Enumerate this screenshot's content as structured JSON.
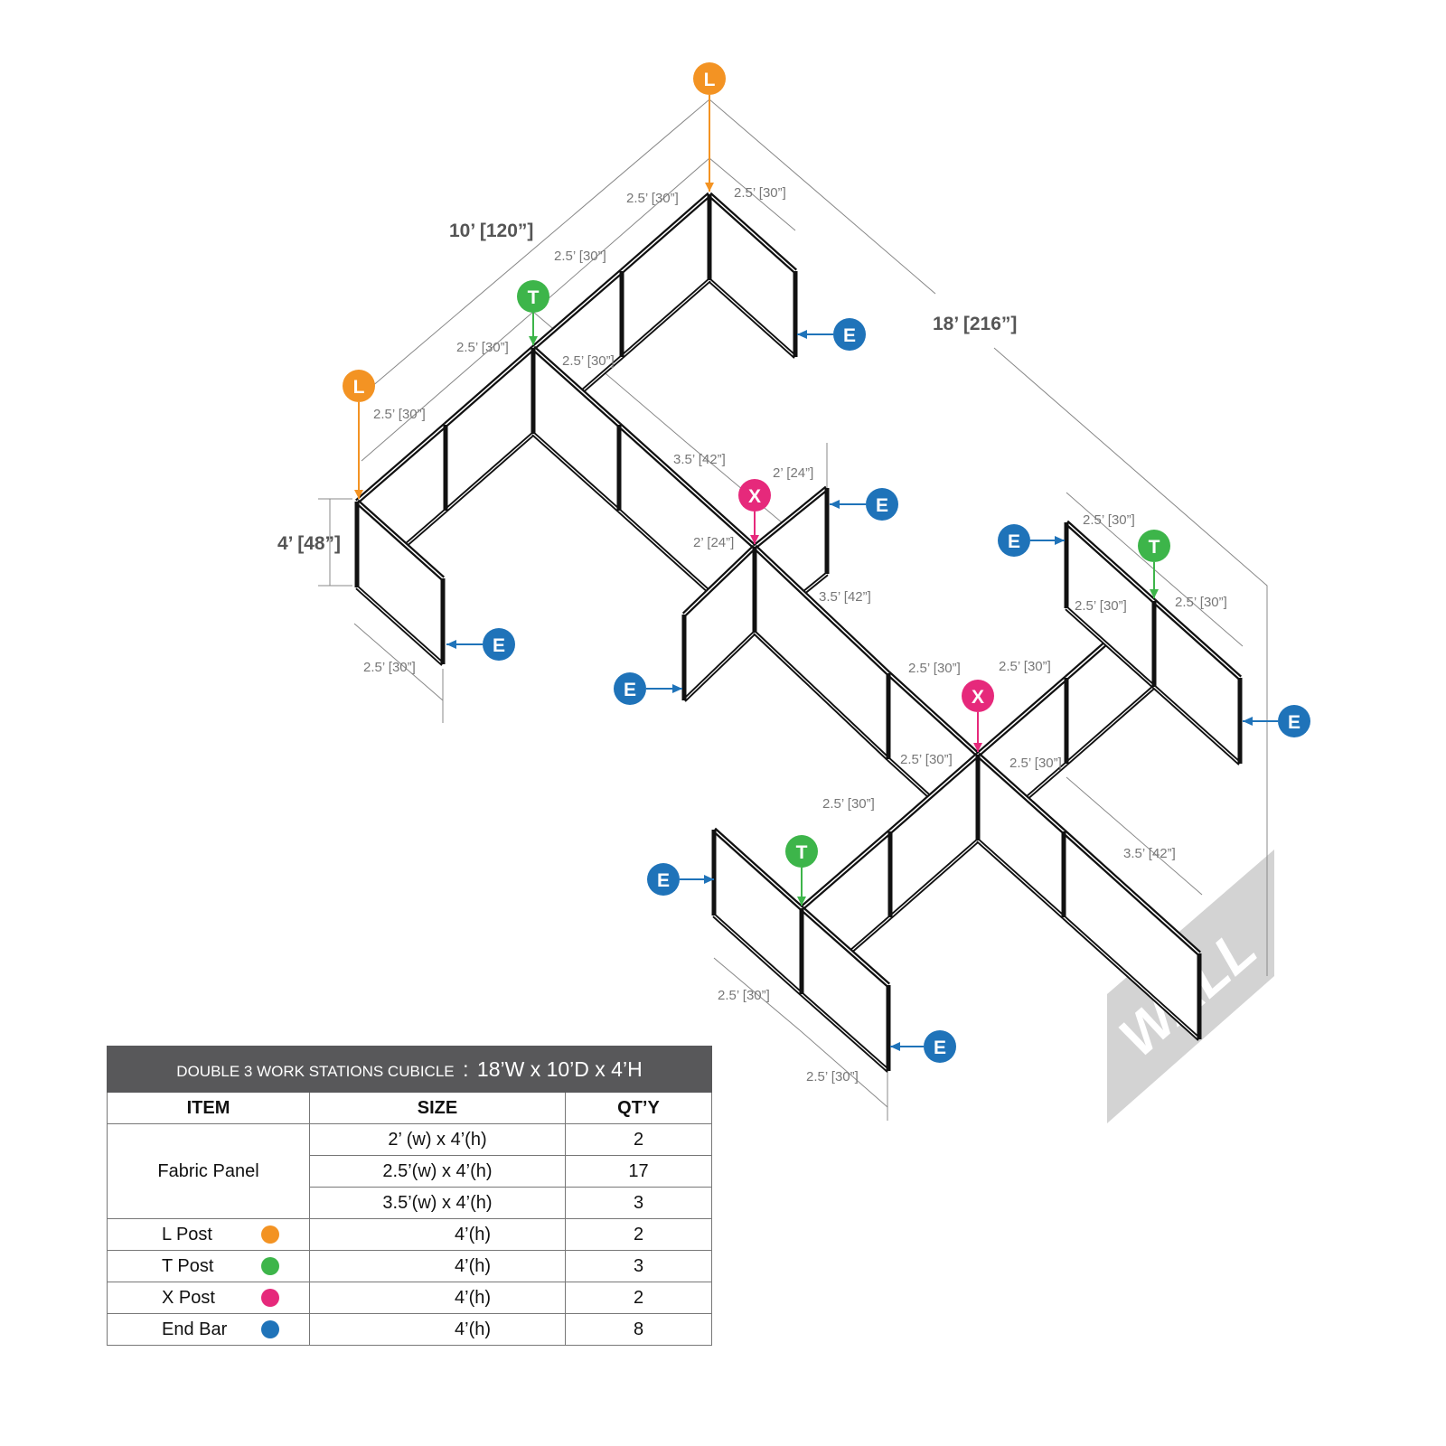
{
  "colors": {
    "l_post": "#f39323",
    "t_post": "#3db54a",
    "x_post": "#e6297b",
    "end_bar": "#1f73b9",
    "header_bg": "#58585a",
    "wall": "#d3d3d3"
  },
  "markers": {
    "l": "L",
    "t": "T",
    "x": "X",
    "e": "E"
  },
  "overall": {
    "depth": "10’ [120”]",
    "width": "18’ [216”]",
    "height": "4’ [48”]"
  },
  "dims": [
    "2.5’ [30”]",
    "2.5’ [30”]",
    "2.5’ [30”]",
    "2.5’ [30”]",
    "2.5’ [30”]",
    "2.5’ [30”]",
    "2.5’ [30”]",
    "3.5’ [42”]",
    "2’ [24”]",
    "2’ [24”]",
    "3.5’ [42”]",
    "2.5’ [30”]",
    "2.5’ [30”]",
    "2.5’ [30”]",
    "2.5’ [30”]",
    "2.5’ [30”]",
    "2.5’ [30”]",
    "2.5’ [30”]",
    "2.5’ [30”]",
    "3.5’ [42”]",
    "2.5’ [30”]",
    "2.5’ [30”]"
  ],
  "wall_label": "WALL",
  "table": {
    "title": "DOUBLE 3 WORK STATIONS  CUBICLE",
    "separator": ":",
    "dimensions": "18’W x 10’D x 4’H",
    "headers": [
      "ITEM",
      "SIZE",
      "QT’Y"
    ],
    "fabric_panel": {
      "item": "Fabric Panel",
      "rows": [
        {
          "size": "2’ (w) x 4’(h)",
          "qty": "2"
        },
        {
          "size": "2.5’(w) x 4’(h)",
          "qty": "17"
        },
        {
          "size": "3.5’(w) x 4’(h)",
          "qty": "3"
        }
      ]
    },
    "posts": [
      {
        "item": "L Post",
        "color": "#f39323",
        "size": "4’(h)",
        "qty": "2"
      },
      {
        "item": "T Post",
        "color": "#3db54a",
        "size": "4’(h)",
        "qty": "3"
      },
      {
        "item": "X Post",
        "color": "#e6297b",
        "size": "4’(h)",
        "qty": "2"
      },
      {
        "item": "End Bar",
        "color": "#1f73b9",
        "size": "4’(h)",
        "qty": "8"
      }
    ]
  }
}
